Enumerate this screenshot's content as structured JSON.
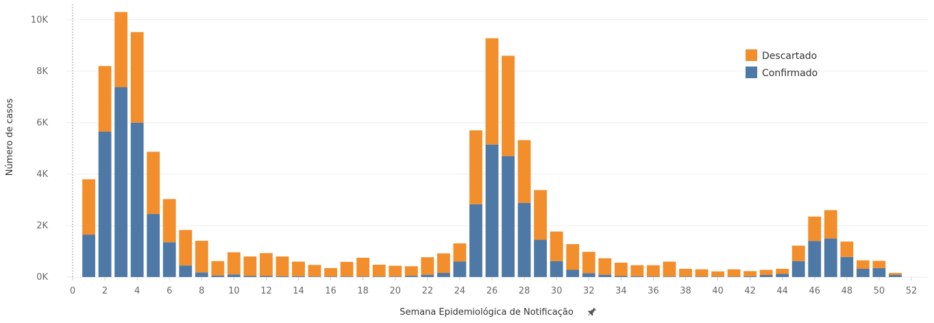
{
  "chart_data": {
    "type": "bar",
    "stacked": true,
    "xlabel": "Semana Epidemiológica de Notificação",
    "ylabel": "Número de casos",
    "xlim": [
      0,
      52
    ],
    "ylim": [
      0,
      10500
    ],
    "x_ticks": [
      0,
      2,
      4,
      6,
      8,
      10,
      12,
      14,
      16,
      18,
      20,
      22,
      24,
      26,
      28,
      30,
      32,
      34,
      36,
      38,
      40,
      42,
      44,
      46,
      48,
      50,
      52
    ],
    "y_ticks": [
      {
        "value": 0,
        "label": "0K"
      },
      {
        "value": 2000,
        "label": "2K"
      },
      {
        "value": 4000,
        "label": "4K"
      },
      {
        "value": 6000,
        "label": "6K"
      },
      {
        "value": 8000,
        "label": "8K"
      },
      {
        "value": 10000,
        "label": "10K"
      }
    ],
    "grid": true,
    "legend_position": "top-right",
    "weeks": [
      1,
      2,
      3,
      4,
      5,
      6,
      7,
      8,
      9,
      10,
      11,
      12,
      13,
      14,
      15,
      16,
      17,
      18,
      19,
      20,
      21,
      22,
      23,
      24,
      25,
      26,
      27,
      28,
      29,
      30,
      31,
      32,
      33,
      34,
      35,
      36,
      37,
      38,
      39,
      40,
      41,
      42,
      43,
      44,
      45,
      46,
      47,
      48,
      49,
      50,
      51
    ],
    "series": [
      {
        "name": "Confirmado",
        "color": "#4e79a7",
        "values": [
          1650,
          5650,
          7380,
          6000,
          2450,
          1350,
          450,
          180,
          60,
          100,
          40,
          40,
          30,
          30,
          20,
          20,
          20,
          20,
          20,
          20,
          50,
          90,
          160,
          600,
          2830,
          5150,
          4700,
          2880,
          1450,
          620,
          280,
          150,
          90,
          40,
          30,
          20,
          20,
          20,
          20,
          20,
          20,
          30,
          80,
          120,
          620,
          1400,
          1500,
          780,
          320,
          350,
          80
        ]
      },
      {
        "name": "Descartado",
        "color": "#f28e2b",
        "values": [
          2150,
          2550,
          2920,
          3520,
          2420,
          1680,
          1380,
          1230,
          560,
          860,
          760,
          890,
          770,
          570,
          450,
          330,
          570,
          730,
          460,
          420,
          370,
          680,
          760,
          710,
          2870,
          4130,
          3900,
          2440,
          1930,
          1150,
          1000,
          830,
          640,
          520,
          430,
          440,
          580,
          300,
          280,
          200,
          280,
          200,
          200,
          200,
          600,
          950,
          1100,
          600,
          330,
          280,
          80
        ]
      }
    ]
  }
}
